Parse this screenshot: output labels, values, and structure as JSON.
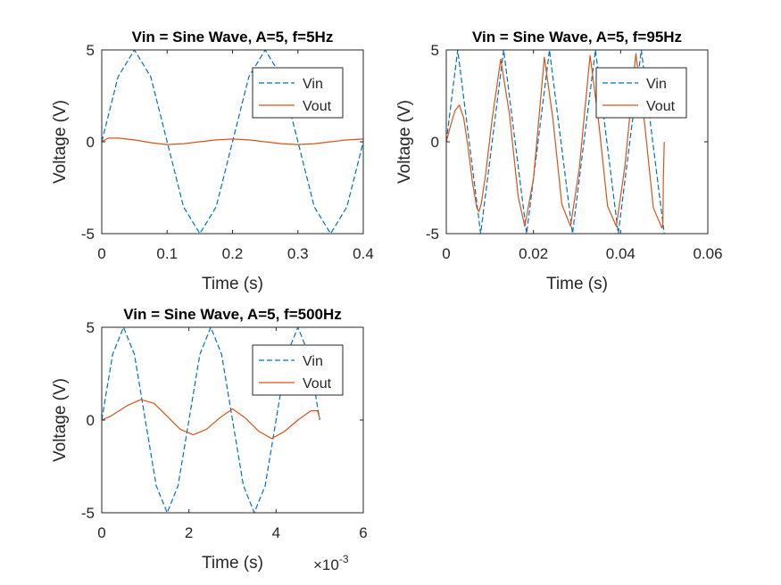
{
  "figure": {
    "background": "#ffffff"
  },
  "colors": {
    "vin": "#0072BD",
    "vout": "#D95319",
    "axis": "#262626",
    "title": "#000000"
  },
  "chart_data": [
    {
      "type": "line",
      "title": "Vin = Sine Wave, A=5, f=5Hz",
      "xlabel": "Time (s)",
      "ylabel": "Voltage (V)",
      "xlim": [
        0,
        0.4
      ],
      "ylim": [
        -5,
        5
      ],
      "xticks": [
        0,
        0.1,
        0.2,
        0.3,
        0.4
      ],
      "xtick_labels": [
        "0",
        "0.1",
        "0.2",
        "0.3",
        "0.4"
      ],
      "yticks": [
        -5,
        0,
        5
      ],
      "ytick_labels": [
        "-5",
        "0",
        "5"
      ],
      "exponent_label": null,
      "grid": false,
      "legend_position": "top-right",
      "series": [
        {
          "name": "Vin",
          "style": "dashed",
          "x": [
            0,
            0.025,
            0.05,
            0.075,
            0.1,
            0.125,
            0.15,
            0.175,
            0.2,
            0.225,
            0.25,
            0.275,
            0.3,
            0.325,
            0.35,
            0.375,
            0.4
          ],
          "y": [
            0,
            3.54,
            5,
            3.54,
            0,
            -3.54,
            -5,
            -3.54,
            0,
            3.54,
            5,
            3.54,
            0,
            -3.54,
            -5,
            -3.54,
            0
          ]
        },
        {
          "name": "Vout",
          "style": "solid",
          "x": [
            0,
            0.01,
            0.025,
            0.05,
            0.075,
            0.1,
            0.125,
            0.15,
            0.175,
            0.2,
            0.225,
            0.25,
            0.275,
            0.3,
            0.325,
            0.35,
            0.375,
            0.4
          ],
          "y": [
            0,
            0.2,
            0.2,
            0.1,
            -0.05,
            -0.15,
            -0.1,
            0.0,
            0.1,
            0.15,
            0.1,
            0.0,
            -0.1,
            -0.15,
            -0.1,
            0.0,
            0.1,
            0.15
          ]
        }
      ]
    },
    {
      "type": "line",
      "title": "Vin = Sine Wave, A=5, f=95Hz",
      "xlabel": "Time (s)",
      "ylabel": "Voltage (V)",
      "xlim": [
        0,
        0.06
      ],
      "ylim": [
        -5,
        5
      ],
      "xticks": [
        0,
        0.02,
        0.04,
        0.06
      ],
      "xtick_labels": [
        "0",
        "0.02",
        "0.04",
        "0.06"
      ],
      "yticks": [
        -5,
        0,
        5
      ],
      "ytick_labels": [
        "-5",
        "0",
        "5"
      ],
      "exponent_label": null,
      "grid": false,
      "legend_position": "top-right",
      "series": [
        {
          "name": "Vin",
          "style": "dashed",
          "x": [
            0,
            0.00263,
            0.00526,
            0.00789,
            0.01053,
            0.01316,
            0.01579,
            0.01842,
            0.02105,
            0.02368,
            0.02632,
            0.02895,
            0.03158,
            0.03421,
            0.03684,
            0.03947,
            0.04211,
            0.04474,
            0.04737,
            0.05
          ],
          "y": [
            0,
            5,
            0,
            -5,
            0,
            5,
            0,
            -5,
            0,
            5,
            0,
            -5,
            0,
            5,
            0,
            -5,
            0,
            5,
            0,
            -5
          ]
        },
        {
          "name": "Vout",
          "style": "solid",
          "x": [
            0,
            0.001,
            0.002,
            0.003,
            0.004,
            0.005,
            0.006,
            0.007,
            0.0075,
            0.008,
            0.009,
            0.0105,
            0.0125,
            0.0145,
            0.0165,
            0.018,
            0.02,
            0.0225,
            0.0245,
            0.0265,
            0.0285,
            0.0305,
            0.033,
            0.035,
            0.037,
            0.039,
            0.041,
            0.0435,
            0.0455,
            0.0475,
            0.0495,
            0.0497,
            0.0498,
            0.05
          ],
          "y": [
            0,
            0.9,
            1.7,
            2.0,
            1.3,
            -0.3,
            -2.2,
            -3.6,
            -3.8,
            -3.4,
            -1.8,
            1.2,
            4.5,
            1.5,
            -3.0,
            -4.6,
            -2.0,
            4.6,
            1.2,
            -3.4,
            -4.6,
            -1.5,
            4.7,
            1.0,
            -3.5,
            -4.6,
            -1.3,
            4.8,
            1.0,
            -3.6,
            -4.7,
            -4.4,
            -2.0,
            0.0
          ]
        }
      ]
    },
    {
      "type": "line",
      "title": "Vin = Sine Wave, A=5, f=500Hz",
      "xlabel": "Time (s)",
      "ylabel": "Voltage (V)",
      "xlim": [
        0,
        0.006
      ],
      "ylim": [
        -5,
        5
      ],
      "xticks": [
        0,
        0.002,
        0.004,
        0.006
      ],
      "xtick_labels": [
        "0",
        "2",
        "4",
        "6"
      ],
      "yticks": [
        -5,
        0,
        5
      ],
      "ytick_labels": [
        "-5",
        "0",
        "5"
      ],
      "exponent_label": {
        "base": "×10",
        "exp": "-3"
      },
      "grid": false,
      "legend_position": "top-right",
      "series": [
        {
          "name": "Vin",
          "style": "dashed",
          "x": [
            0,
            0.00025,
            0.0005,
            0.00075,
            0.001,
            0.00125,
            0.0015,
            0.00175,
            0.002,
            0.00225,
            0.0025,
            0.00275,
            0.003,
            0.00325,
            0.0035,
            0.00375,
            0.004,
            0.00425,
            0.0045,
            0.00475,
            0.005
          ],
          "y": [
            0,
            3.54,
            5,
            3.54,
            0,
            -3.54,
            -5,
            -3.54,
            0,
            3.54,
            5,
            3.54,
            0,
            -3.54,
            -5,
            -3.54,
            0,
            3.54,
            5,
            3.54,
            0
          ]
        },
        {
          "name": "Vout",
          "style": "solid",
          "x": [
            0,
            0.0002,
            0.0004,
            0.0006,
            0.0009,
            0.0012,
            0.0015,
            0.0018,
            0.0021,
            0.0024,
            0.0027,
            0.003,
            0.0033,
            0.0036,
            0.0039,
            0.0042,
            0.0045,
            0.0048,
            0.00495,
            0.005
          ],
          "y": [
            0,
            0.2,
            0.5,
            0.8,
            1.1,
            0.9,
            0.2,
            -0.5,
            -0.8,
            -0.5,
            0.1,
            0.6,
            0.1,
            -0.6,
            -1.0,
            -0.6,
            0.0,
            0.5,
            0.5,
            0.1
          ]
        }
      ]
    }
  ]
}
